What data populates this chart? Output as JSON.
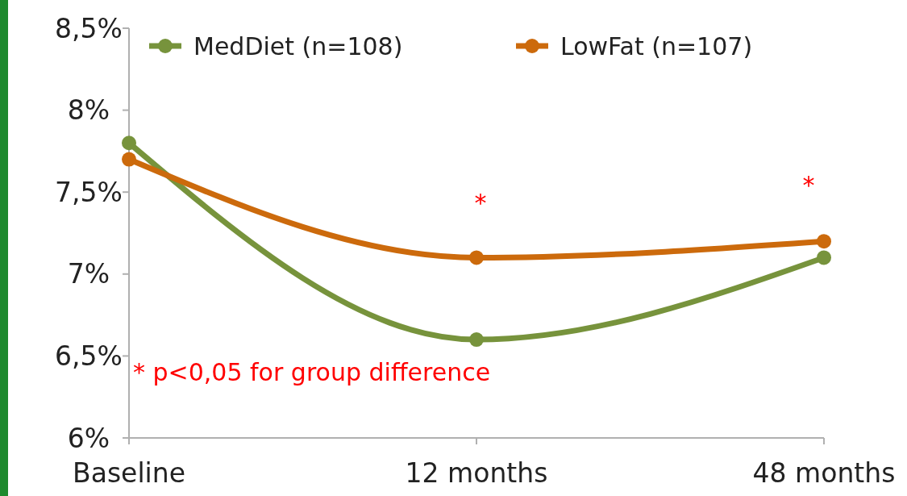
{
  "chart_data": {
    "type": "line",
    "categories": [
      "Baseline",
      "12 months",
      "48 months"
    ],
    "series": [
      {
        "name": "MedDiet (n=108)",
        "color": "#77933c",
        "values": [
          7.8,
          6.6,
          7.1
        ]
      },
      {
        "name": "LowFat (n=107)",
        "color": "#cc6a0c",
        "values": [
          7.7,
          7.1,
          7.2
        ]
      }
    ],
    "ylim": [
      6,
      8.5
    ],
    "yticks": [
      {
        "value": 6,
        "label": "6%"
      },
      {
        "value": 6.5,
        "label": "6,5%"
      },
      {
        "value": 7,
        "label": "7%"
      },
      {
        "value": 7.5,
        "label": "7,5%"
      },
      {
        "value": 8,
        "label": "8%"
      },
      {
        "value": 8.5,
        "label": "8,5%"
      }
    ],
    "annotations": [
      "*",
      "*",
      "* p<0,05 for group difference"
    ],
    "legend": "top",
    "marker": "circle",
    "line_style": "solid",
    "grid": false
  }
}
